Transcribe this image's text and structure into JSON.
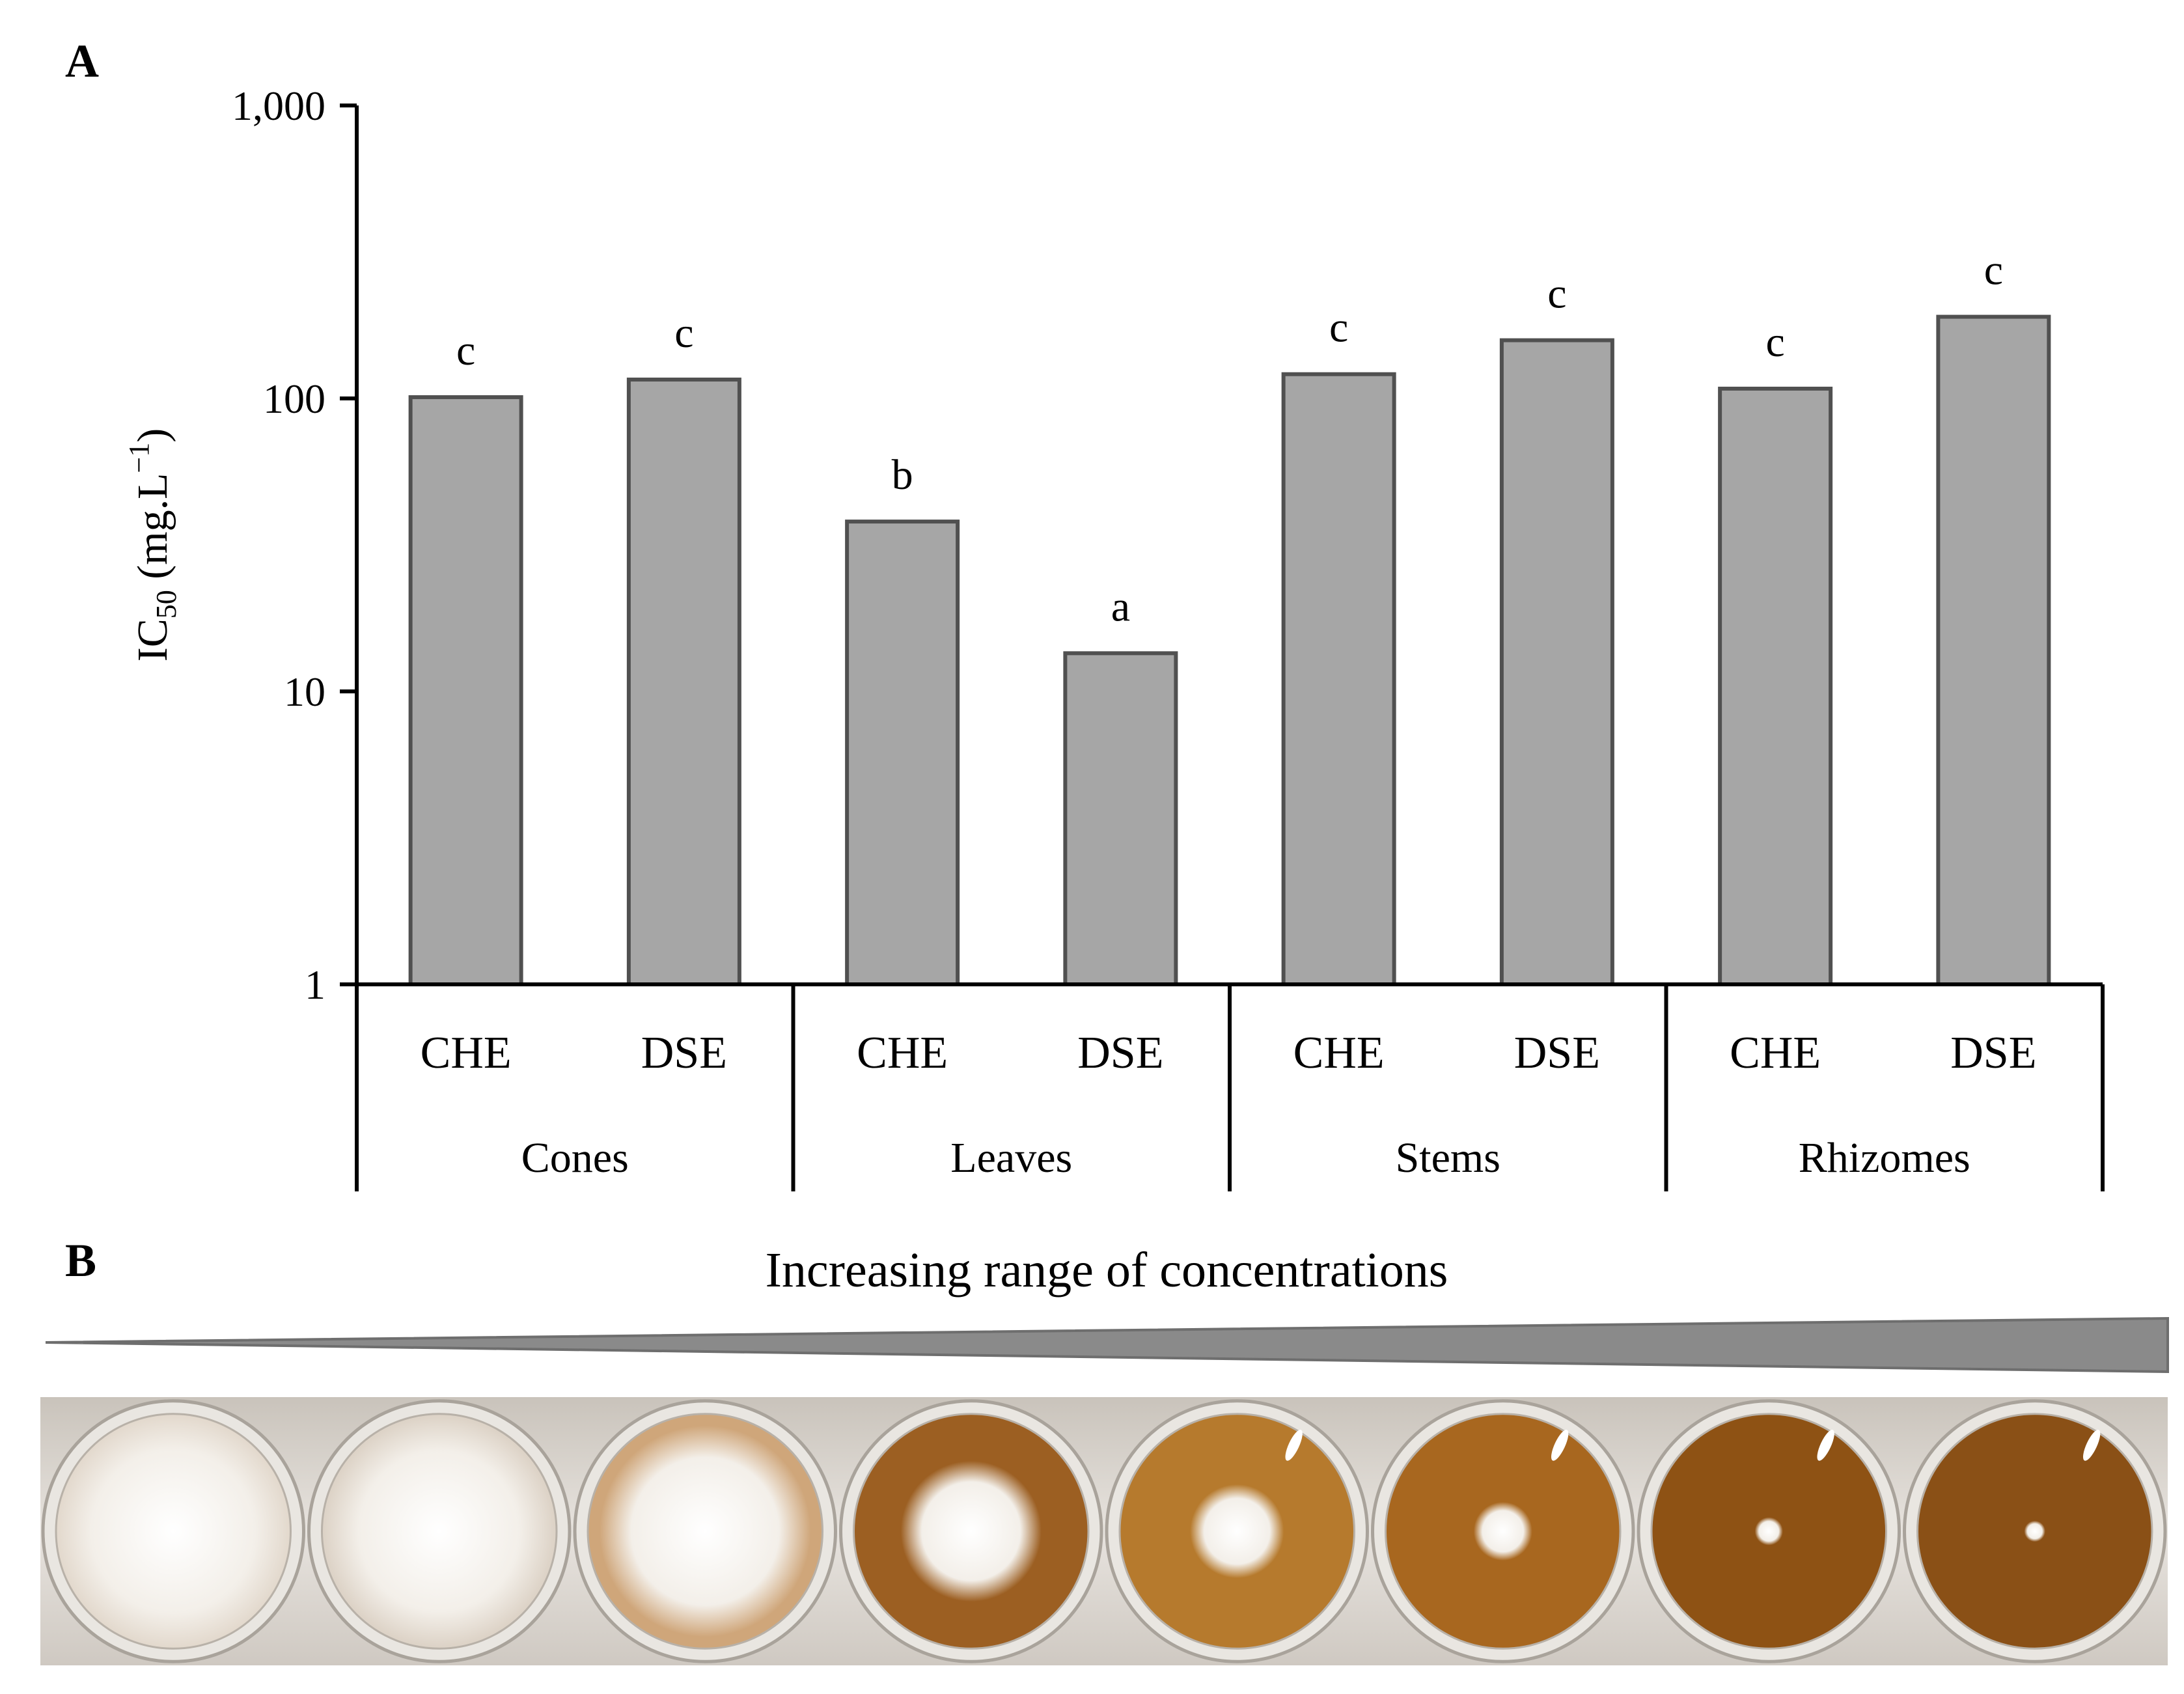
{
  "panels": {
    "a_label": "A",
    "b_label": "B"
  },
  "chart_data": {
    "type": "bar",
    "yscale": "log",
    "ylim": [
      1,
      1000
    ],
    "yticks": [
      1,
      10,
      100,
      1000
    ],
    "ytick_labels": [
      "1",
      "10",
      "100",
      "1,000"
    ],
    "ylabel_main": "IC",
    "ylabel_sub": "50",
    "ylabel_rest": " (mg.L",
    "ylabel_sup": "−1",
    "ylabel_close": ")",
    "bar_color": "#a6a6a6",
    "groups": [
      {
        "name": "Cones",
        "bars": [
          {
            "label": "CHE",
            "value": 101,
            "sig": "c"
          },
          {
            "label": "DSE",
            "value": 116,
            "sig": "c"
          }
        ]
      },
      {
        "name": "Leaves",
        "bars": [
          {
            "label": "CHE",
            "value": 38,
            "sig": "b"
          },
          {
            "label": "DSE",
            "value": 13.5,
            "sig": "a"
          }
        ]
      },
      {
        "name": "Stems",
        "bars": [
          {
            "label": "CHE",
            "value": 121,
            "sig": "c"
          },
          {
            "label": "DSE",
            "value": 158,
            "sig": "c"
          }
        ]
      },
      {
        "name": "Rhizomes",
        "bars": [
          {
            "label": "CHE",
            "value": 108,
            "sig": "c"
          },
          {
            "label": "DSE",
            "value": 190,
            "sig": "c"
          }
        ]
      }
    ]
  },
  "panel_b": {
    "title": "Increasing range of concentrations",
    "colony_sizes": [
      1.0,
      0.98,
      0.9,
      0.6,
      0.4,
      0.25,
      0.12,
      0.09
    ],
    "medium_colors": [
      "#e2d8cc",
      "#ddd3c7",
      "#cfa67a",
      "#9c5f22",
      "#b67a2d",
      "#a8671f",
      "#8e5214",
      "#8a5016"
    ]
  }
}
